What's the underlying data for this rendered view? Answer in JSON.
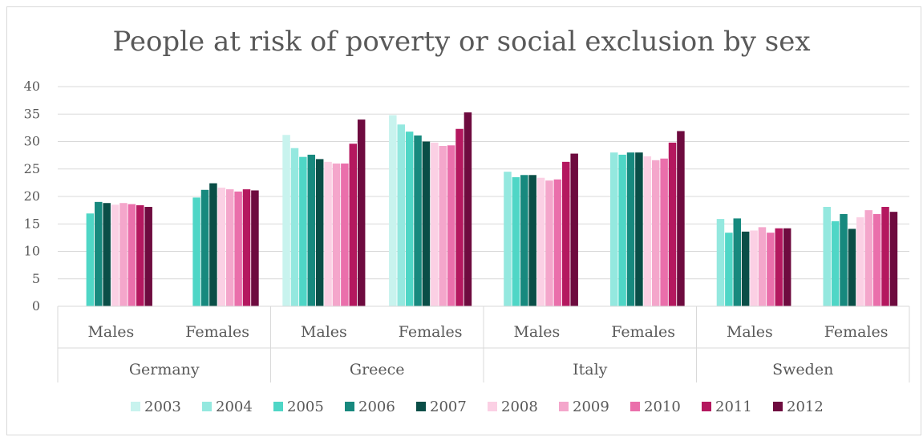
{
  "chart_data": {
    "type": "bar",
    "title": "People at risk of poverty or social exclusion by sex",
    "xlabel": "",
    "ylabel": "",
    "ylim": [
      0,
      40
    ],
    "yticks": [
      0,
      5,
      10,
      15,
      20,
      25,
      30,
      35,
      40
    ],
    "grid": true,
    "legend_position": "bottom",
    "groups": [
      "Germany",
      "Greece",
      "Italy",
      "Sweden"
    ],
    "subcategories": [
      "Males",
      "Females"
    ],
    "categories": [
      "Germany Males",
      "Germany Females",
      "Greece Males",
      "Greece Females",
      "Italy Males",
      "Italy Females",
      "Sweden Males",
      "Sweden Females"
    ],
    "series": [
      {
        "name": "2003",
        "color": "#c8f3ee",
        "values": [
          null,
          null,
          31.2,
          34.8,
          null,
          null,
          null,
          null
        ]
      },
      {
        "name": "2004",
        "color": "#94e8df",
        "values": [
          null,
          null,
          28.8,
          33.1,
          24.5,
          28.0,
          15.9,
          18.1
        ]
      },
      {
        "name": "2005",
        "color": "#4fd6c6",
        "values": [
          16.9,
          19.8,
          27.2,
          31.8,
          23.5,
          27.6,
          13.4,
          15.5
        ]
      },
      {
        "name": "2006",
        "color": "#17897e",
        "values": [
          19.0,
          21.2,
          27.6,
          31.1,
          23.9,
          28.0,
          16.0,
          16.8
        ]
      },
      {
        "name": "2007",
        "color": "#0a4e47",
        "values": [
          18.8,
          22.4,
          26.8,
          30.0,
          23.9,
          28.0,
          13.6,
          14.1
        ]
      },
      {
        "name": "2008",
        "color": "#fbd0e4",
        "values": [
          18.5,
          21.6,
          26.3,
          29.8,
          23.4,
          27.3,
          13.8,
          16.2
        ]
      },
      {
        "name": "2009",
        "color": "#f4a6cb",
        "values": [
          18.8,
          21.3,
          26.0,
          29.2,
          22.9,
          26.6,
          14.4,
          17.5
        ]
      },
      {
        "name": "2010",
        "color": "#ea6fab",
        "values": [
          18.6,
          20.9,
          26.0,
          29.3,
          23.1,
          26.9,
          13.4,
          16.8
        ]
      },
      {
        "name": "2011",
        "color": "#b4185f",
        "values": [
          18.4,
          21.3,
          29.6,
          32.3,
          26.3,
          29.8,
          14.2,
          18.1
        ]
      },
      {
        "name": "2012",
        "color": "#6e0b3f",
        "values": [
          18.1,
          21.1,
          34.0,
          35.3,
          27.8,
          31.9,
          14.2,
          17.2
        ]
      }
    ]
  }
}
